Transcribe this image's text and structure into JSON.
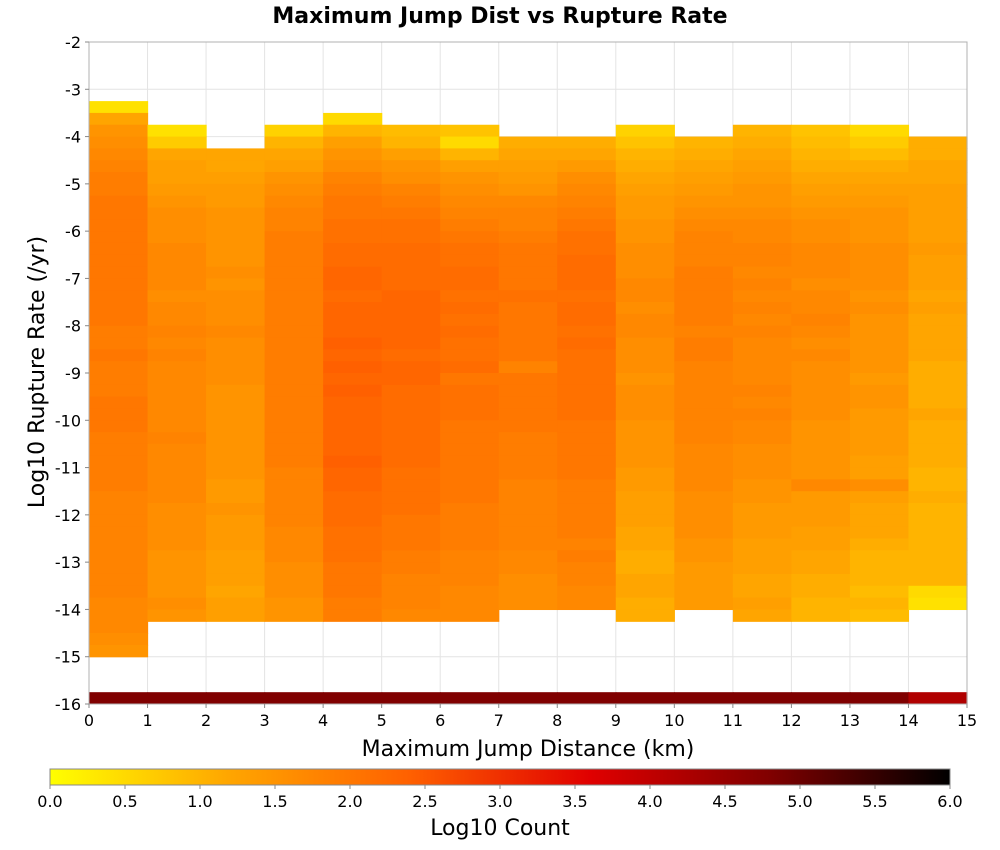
{
  "chart_data": {
    "type": "heatmap",
    "title": "Maximum Jump Dist vs Rupture Rate",
    "xlabel": "Maximum Jump Distance (km)",
    "ylabel": "Log10 Rupture Rate (/yr)",
    "xlim": [
      0,
      15
    ],
    "ylim": [
      -16,
      -2
    ],
    "x_bin_width": 1,
    "y_bin_width": 0.25,
    "x_ticks": [
      "0",
      "1",
      "2",
      "3",
      "4",
      "5",
      "6",
      "7",
      "8",
      "9",
      "10",
      "11",
      "12",
      "13",
      "14",
      "15"
    ],
    "y_ticks": [
      "-2",
      "-3",
      "-4",
      "-5",
      "-6",
      "-7",
      "-8",
      "-9",
      "-10",
      "-11",
      "-12",
      "-13",
      "-14",
      "-15",
      "-16"
    ],
    "colorbar": {
      "label": "Log10 Count",
      "range": [
        0,
        6
      ],
      "ticks": [
        "0.0",
        "0.5",
        "1.0",
        "1.5",
        "2.0",
        "2.5",
        "3.0",
        "3.5",
        "4.0",
        "4.5",
        "5.0",
        "5.5",
        "6.0"
      ],
      "colors": [
        "#ffff00",
        "#ffa500",
        "#ff6000",
        "#e00000",
        "#800000",
        "#000000"
      ]
    },
    "columns": [
      {
        "x": 0,
        "top": -3.25,
        "values": [
          0.4,
          1.2,
          1.5,
          1.6,
          1.7,
          1.8,
          1.9,
          1.9,
          2.0,
          2.0,
          2.0,
          2.0,
          2.0,
          2.0,
          2.0,
          2.0,
          2.0,
          2.0,
          2.0,
          1.9,
          1.9,
          2.0,
          1.9,
          1.9,
          1.9,
          2.0,
          2.0,
          2.0,
          1.9,
          1.9,
          1.9,
          1.9,
          1.9,
          1.8,
          1.8,
          1.8,
          1.8,
          1.8,
          1.8,
          1.8,
          1.8,
          1.8,
          1.7,
          1.7,
          1.7,
          1.6,
          1.5
        ],
        "bottom": 4.8
      },
      {
        "x": 1,
        "top": -3.75,
        "values": [
          0.4,
          0.7,
          1.2,
          1.3,
          1.3,
          1.4,
          1.5,
          1.6,
          1.6,
          1.6,
          1.7,
          1.7,
          1.7,
          1.7,
          1.6,
          1.7,
          1.7,
          1.8,
          1.7,
          1.8,
          1.7,
          1.7,
          1.7,
          1.7,
          1.7,
          1.7,
          1.8,
          1.7,
          1.7,
          1.7,
          1.7,
          1.7,
          1.6,
          1.6,
          1.6,
          1.6,
          1.5,
          1.5,
          1.5,
          1.5,
          1.6,
          1.5
        ],
        "bottom": 4.8
      },
      {
        "x": 2,
        "top": -4.25,
        "values": [
          1.2,
          1.2,
          1.3,
          1.4,
          1.4,
          1.5,
          1.5,
          1.5,
          1.5,
          1.5,
          1.6,
          1.5,
          1.6,
          1.6,
          1.6,
          1.7,
          1.6,
          1.6,
          1.6,
          1.6,
          1.5,
          1.5,
          1.5,
          1.5,
          1.5,
          1.5,
          1.5,
          1.5,
          1.4,
          1.4,
          1.5,
          1.4,
          1.4,
          1.4,
          1.3,
          1.3,
          1.3,
          1.2,
          1.3,
          1.3
        ],
        "bottom": 4.8
      },
      {
        "x": 3,
        "top": -3.75,
        "values": [
          0.6,
          1.0,
          1.2,
          1.3,
          1.5,
          1.6,
          1.7,
          1.8,
          1.8,
          1.9,
          1.9,
          1.9,
          1.9,
          1.9,
          1.9,
          1.9,
          1.9,
          1.9,
          1.9,
          1.9,
          1.9,
          1.9,
          1.9,
          1.9,
          1.9,
          1.9,
          1.9,
          1.9,
          1.9,
          1.8,
          1.8,
          1.8,
          1.8,
          1.8,
          1.7,
          1.7,
          1.7,
          1.6,
          1.6,
          1.6,
          1.5,
          1.5
        ],
        "bottom": 4.8
      },
      {
        "x": 4,
        "top": -3.5,
        "values": [
          0.5,
          1.0,
          1.3,
          1.5,
          1.6,
          1.8,
          1.9,
          2.0,
          2.0,
          2.1,
          2.1,
          2.2,
          2.2,
          2.3,
          2.3,
          2.2,
          2.3,
          2.3,
          2.3,
          2.4,
          2.3,
          2.4,
          2.3,
          2.4,
          2.3,
          2.3,
          2.3,
          2.3,
          2.3,
          2.4,
          2.3,
          2.3,
          2.2,
          2.2,
          2.2,
          2.1,
          2.1,
          2.1,
          2.0,
          2.0,
          2.0,
          1.9,
          1.9
        ],
        "bottom": 4.8
      },
      {
        "x": 5,
        "top": -3.75,
        "values": [
          0.9,
          1.0,
          1.3,
          1.5,
          1.6,
          1.8,
          1.9,
          2.0,
          2.1,
          2.1,
          2.2,
          2.2,
          2.2,
          2.2,
          2.3,
          2.3,
          2.3,
          2.3,
          2.3,
          2.2,
          2.3,
          2.3,
          2.2,
          2.2,
          2.2,
          2.2,
          2.2,
          2.2,
          2.2,
          2.1,
          2.1,
          2.1,
          2.1,
          2.0,
          2.0,
          2.0,
          1.9,
          1.9,
          1.8,
          1.8,
          1.8,
          1.7
        ],
        "bottom": 4.8
      },
      {
        "x": 6,
        "top": -3.75,
        "values": [
          0.8,
          0.5,
          1.0,
          1.3,
          1.5,
          1.6,
          1.7,
          1.8,
          1.9,
          2.0,
          2.1,
          2.1,
          2.2,
          2.2,
          2.1,
          2.2,
          2.1,
          2.2,
          2.1,
          2.1,
          2.2,
          2.0,
          2.1,
          2.1,
          2.1,
          2.0,
          2.0,
          2.0,
          2.0,
          2.0,
          2.0,
          2.0,
          1.9,
          1.9,
          1.9,
          1.9,
          1.8,
          1.8,
          1.8,
          1.7,
          1.7,
          1.7
        ],
        "bottom": 4.8
      },
      {
        "x": 7,
        "top": -4.0,
        "values": [
          1.1,
          1.2,
          1.3,
          1.4,
          1.5,
          1.7,
          1.8,
          1.8,
          1.9,
          2.0,
          2.0,
          2.0,
          2.0,
          2.1,
          2.0,
          2.0,
          2.0,
          2.0,
          2.0,
          1.8,
          2.0,
          2.0,
          2.0,
          2.0,
          2.0,
          1.9,
          1.9,
          1.9,
          1.9,
          1.8,
          1.8,
          1.8,
          1.8,
          1.8,
          1.8,
          1.7,
          1.7,
          1.6,
          1.6,
          1.6
        ],
        "bottom": 4.8
      },
      {
        "x": 8,
        "top": -4.0,
        "values": [
          1.1,
          1.2,
          1.4,
          1.6,
          1.7,
          1.8,
          1.9,
          2.0,
          2.1,
          2.1,
          2.2,
          2.2,
          2.2,
          2.1,
          2.2,
          2.2,
          2.1,
          2.2,
          2.1,
          2.1,
          2.1,
          2.1,
          2.1,
          2.1,
          2.0,
          2.0,
          2.0,
          2.0,
          2.0,
          1.9,
          1.9,
          1.9,
          1.9,
          1.9,
          1.8,
          1.9,
          1.8,
          1.8,
          1.7,
          1.7
        ],
        "bottom": 4.8
      },
      {
        "x": 9,
        "top": -3.75,
        "values": [
          0.6,
          0.8,
          1.0,
          1.1,
          1.2,
          1.3,
          1.4,
          1.4,
          1.5,
          1.5,
          1.6,
          1.6,
          1.6,
          1.7,
          1.7,
          1.6,
          1.7,
          1.7,
          1.6,
          1.6,
          1.6,
          1.5,
          1.6,
          1.6,
          1.6,
          1.5,
          1.5,
          1.5,
          1.5,
          1.4,
          1.4,
          1.3,
          1.3,
          1.3,
          1.2,
          1.2,
          1.1,
          1.1,
          1.2,
          1.2,
          1.1,
          1.1
        ],
        "bottom": 4.8
      },
      {
        "x": 10,
        "top": -4.0,
        "values": [
          1.0,
          1.1,
          1.2,
          1.3,
          1.4,
          1.5,
          1.6,
          1.7,
          1.8,
          1.8,
          1.8,
          1.9,
          1.9,
          1.9,
          1.9,
          1.9,
          1.8,
          1.9,
          1.9,
          1.8,
          1.8,
          1.8,
          1.8,
          1.8,
          1.8,
          1.8,
          1.7,
          1.7,
          1.7,
          1.7,
          1.6,
          1.6,
          1.6,
          1.6,
          1.5,
          1.5,
          1.4,
          1.4,
          1.4,
          1.4
        ],
        "bottom": 4.8
      },
      {
        "x": 11,
        "top": -3.75,
        "values": [
          1.0,
          1.1,
          1.2,
          1.3,
          1.4,
          1.5,
          1.5,
          1.6,
          1.7,
          1.7,
          1.8,
          1.8,
          1.7,
          1.8,
          1.7,
          1.8,
          1.7,
          1.8,
          1.7,
          1.7,
          1.7,
          1.7,
          1.8,
          1.7,
          1.8,
          1.7,
          1.7,
          1.6,
          1.6,
          1.6,
          1.5,
          1.5,
          1.4,
          1.4,
          1.4,
          1.3,
          1.3,
          1.3,
          1.2,
          1.2,
          1.3,
          1.2
        ],
        "bottom": 4.8
      },
      {
        "x": 12,
        "top": -3.75,
        "values": [
          0.8,
          0.9,
          1.0,
          1.1,
          1.2,
          1.3,
          1.4,
          1.5,
          1.6,
          1.6,
          1.7,
          1.7,
          1.7,
          1.6,
          1.7,
          1.7,
          1.8,
          1.7,
          1.6,
          1.7,
          1.6,
          1.6,
          1.6,
          1.6,
          1.6,
          1.5,
          1.5,
          1.5,
          1.5,
          1.5,
          1.7,
          1.4,
          1.4,
          1.4,
          1.3,
          1.3,
          1.2,
          1.2,
          1.1,
          1.1,
          1.0,
          1.0
        ],
        "bottom": 4.8
      },
      {
        "x": 13,
        "top": -3.75,
        "values": [
          0.5,
          0.7,
          0.9,
          1.1,
          1.2,
          1.3,
          1.4,
          1.5,
          1.5,
          1.5,
          1.6,
          1.6,
          1.6,
          1.6,
          1.5,
          1.6,
          1.5,
          1.5,
          1.5,
          1.5,
          1.5,
          1.4,
          1.5,
          1.5,
          1.4,
          1.4,
          1.4,
          1.4,
          1.3,
          1.3,
          1.6,
          1.3,
          1.2,
          1.2,
          1.2,
          1.1,
          1.0,
          1.0,
          1.0,
          0.9,
          1.0,
          0.9
        ],
        "bottom": 4.8
      },
      {
        "x": 14,
        "top": -4.0,
        "values": [
          1.1,
          1.1,
          1.2,
          1.2,
          1.3,
          1.3,
          1.3,
          1.3,
          1.3,
          1.4,
          1.3,
          1.3,
          1.3,
          1.2,
          1.3,
          1.2,
          1.2,
          1.2,
          1.2,
          1.1,
          1.1,
          1.1,
          1.1,
          1.2,
          1.1,
          1.1,
          1.1,
          1.1,
          1.0,
          1.0,
          1.1,
          1.0,
          1.0,
          1.0,
          1.0,
          1.0,
          1.0,
          1.0,
          0.5,
          0.4
        ],
        "bottom": 4.2
      }
    ]
  }
}
